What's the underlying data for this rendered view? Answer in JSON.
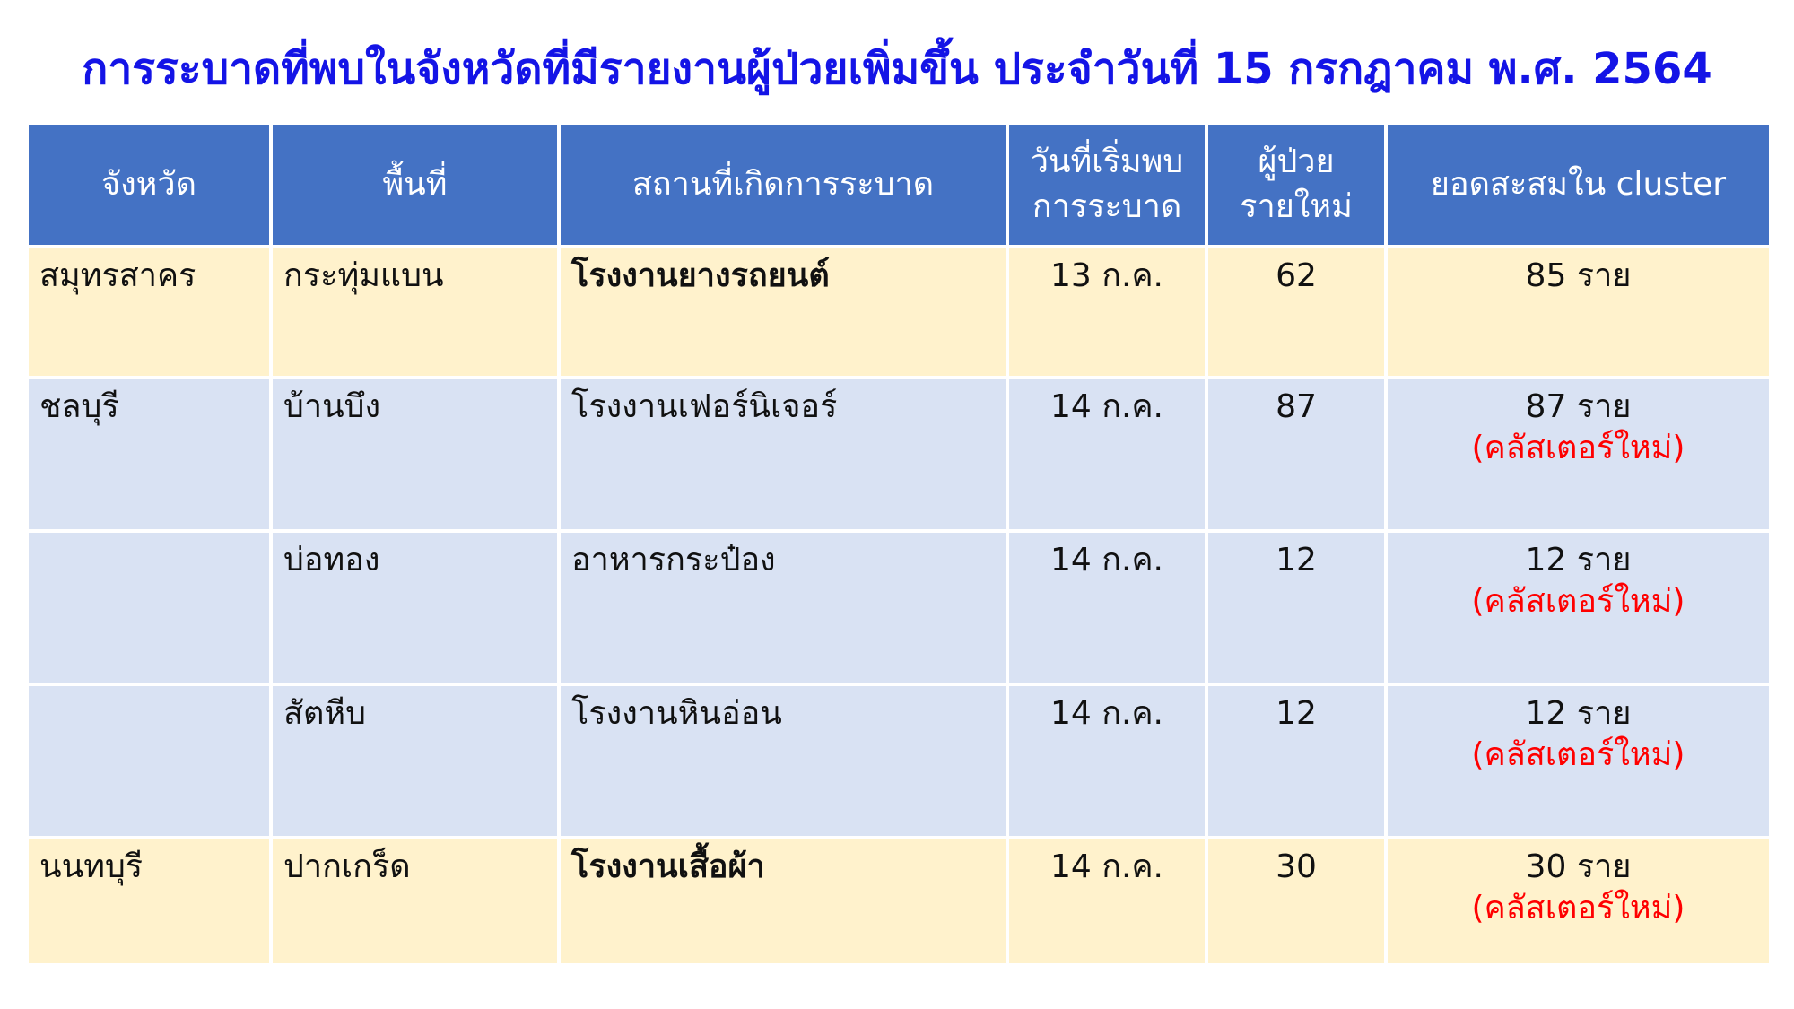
{
  "title": "การระบาดที่พบในจังหวัดที่มีรายงานผู้ป่วยเพิ่มขึ้น ประจำวันที่ 15 กรกฎาคม พ.ศ. 2564",
  "colors": {
    "header_bg": "#4472C4",
    "row_yellow": "#FFF2CC",
    "row_blue": "#D9E2F3",
    "title": "#1414E6",
    "new_cluster": "#FF0000"
  },
  "headers": {
    "province": "จังหวัด",
    "area": "พื้นที่",
    "place": "สถานที่เกิดการระบาด",
    "start_line1": "วันที่เริ่มพบ",
    "start_line2": "การระบาด",
    "new_line1": "ผู้ป่วย",
    "new_line2": "รายใหม่",
    "cumulative": "ยอดสะสมใน cluster"
  },
  "rows": [
    {
      "province": "สมุทรสาคร",
      "area": "กระทุ่มแบน",
      "place": "โรงงานยางรถยนต์",
      "start": "13 ก.ค.",
      "new": "62",
      "cumulative": "85 ราย",
      "note": ""
    },
    {
      "province": "ชลบุรี",
      "area": "บ้านบึง",
      "place": "โรงงานเฟอร์นิเจอร์",
      "start": "14 ก.ค.",
      "new": "87",
      "cumulative": "87 ราย",
      "note": "(คลัสเตอร์ใหม่)"
    },
    {
      "province": "",
      "area": "บ่อทอง",
      "place": "อาหารกระป๋อง",
      "start": "14 ก.ค.",
      "new": "12",
      "cumulative": "12 ราย",
      "note": "(คลัสเตอร์ใหม่)"
    },
    {
      "province": "",
      "area": "สัตหีบ",
      "place": "โรงงานหินอ่อน",
      "start": "14 ก.ค.",
      "new": "12",
      "cumulative": "12 ราย",
      "note": "(คลัสเตอร์ใหม่)"
    },
    {
      "province": "นนทบุรี",
      "area": "ปากเกร็ด",
      "place": "โรงงานเสื้อผ้า",
      "start": "14 ก.ค.",
      "new": "30",
      "cumulative": "30 ราย",
      "note": "(คลัสเตอร์ใหม่)"
    }
  ]
}
